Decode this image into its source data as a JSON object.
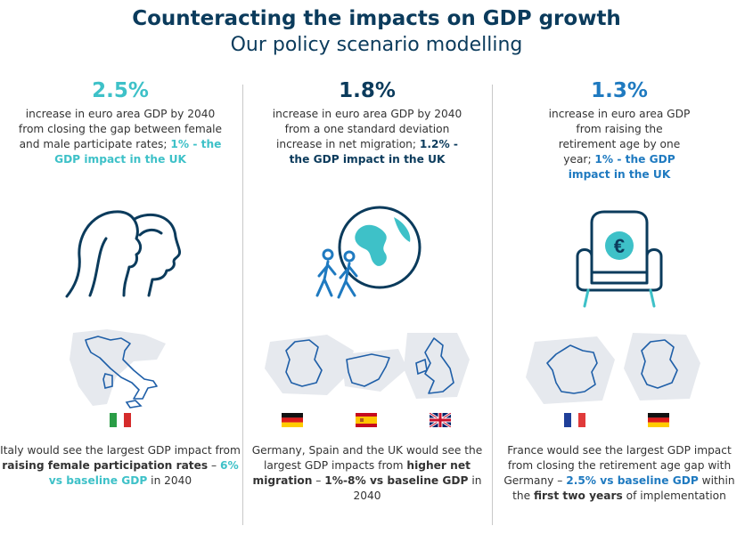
{
  "title": "Counteracting the impacts on GDP growth",
  "subtitle": "Our policy scenario modelling",
  "colors": {
    "navy": "#0b3b5c",
    "teal": "#3ec1c8",
    "blue": "#1f7ac0"
  },
  "columns": [
    {
      "value": "2.5%",
      "desc_plain": "increase in euro area GDP by 2040 from closing the gap between female and male participate rates; ",
      "desc_bold": "1% - the GDP impact in the UK",
      "icon": "two-faces-icon",
      "countries": [
        "Italy"
      ],
      "bottom_p1": "Italy would see the largest GDP impact from ",
      "bottom_b1": "raising female participation rates",
      "bottom_p2": " – ",
      "bottom_b2": "6% vs baseline GDP",
      "bottom_p3": " in 2040"
    },
    {
      "value": "1.8%",
      "desc_plain": "increase in euro area GDP by 2040 from a one standard deviation increase in net migration; ",
      "desc_bold": "1.2% - the GDP impact in the UK",
      "icon": "globe-walkers-icon",
      "countries": [
        "Germany",
        "Spain",
        "UK"
      ],
      "bottom_p1": "Germany, Spain and the UK would see the largest GDP impacts from ",
      "bottom_b1": "higher net migration",
      "bottom_p2": " – ",
      "bottom_b2": "1%-8% vs baseline GDP",
      "bottom_p3": " in 2040"
    },
    {
      "value": "1.3%",
      "desc_plain": "increase in euro area GDP from raising the retirement age by one year; ",
      "desc_bold": "1% - the GDP impact in the UK",
      "icon": "armchair-euro-icon",
      "countries": [
        "France",
        "Germany"
      ],
      "bottom_p1": "France would see the largest GDP impact from closing the retirement age gap with Germany – ",
      "bottom_b1": "2.5% vs baseline GDP",
      "bottom_p2": " within the ",
      "bottom_b2": "first two years",
      "bottom_p3": " of implementation"
    }
  ]
}
